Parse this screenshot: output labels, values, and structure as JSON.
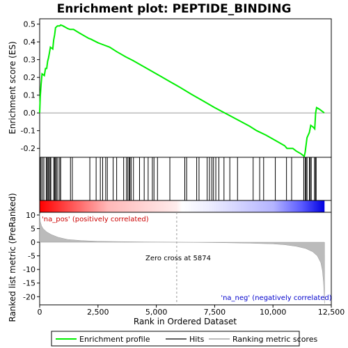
{
  "chart_data": {
    "type": "line",
    "title": "Enrichment plot: PEPTIDE_BINDING",
    "top_panel": {
      "ylabel": "Enrichment score (ES)",
      "ylim": [
        -0.25,
        0.53
      ],
      "yticks": [
        -0.2,
        -0.1,
        0.0,
        0.1,
        0.2,
        0.3,
        0.4,
        0.5
      ],
      "ytick_labels": [
        "-0.2",
        "-0.1",
        "0.0",
        "0.1",
        "0.2",
        "0.3",
        "0.4",
        "0.5"
      ],
      "series_color": "#00ee00",
      "es_curve": [
        [
          0,
          0.0
        ],
        [
          25,
          0.09
        ],
        [
          60,
          0.16
        ],
        [
          100,
          0.22
        ],
        [
          200,
          0.21
        ],
        [
          250,
          0.25
        ],
        [
          300,
          0.25
        ],
        [
          340,
          0.29
        ],
        [
          380,
          0.31
        ],
        [
          420,
          0.34
        ],
        [
          460,
          0.37
        ],
        [
          560,
          0.36
        ],
        [
          600,
          0.41
        ],
        [
          640,
          0.44
        ],
        [
          680,
          0.48
        ],
        [
          760,
          0.49
        ],
        [
          860,
          0.49
        ],
        [
          900,
          0.495
        ],
        [
          1000,
          0.49
        ],
        [
          1200,
          0.475
        ],
        [
          1300,
          0.47
        ],
        [
          1450,
          0.47
        ],
        [
          1700,
          0.45
        ],
        [
          2100,
          0.42
        ],
        [
          2200,
          0.415
        ],
        [
          2500,
          0.395
        ],
        [
          2700,
          0.385
        ],
        [
          3000,
          0.37
        ],
        [
          3300,
          0.345
        ],
        [
          3700,
          0.315
        ],
        [
          4000,
          0.295
        ],
        [
          4400,
          0.265
        ],
        [
          4800,
          0.235
        ],
        [
          5200,
          0.205
        ],
        [
          5600,
          0.175
        ],
        [
          6000,
          0.145
        ],
        [
          6500,
          0.105
        ],
        [
          7000,
          0.068
        ],
        [
          7500,
          0.03
        ],
        [
          8000,
          -0.005
        ],
        [
          8500,
          -0.04
        ],
        [
          9000,
          -0.075
        ],
        [
          9300,
          -0.1
        ],
        [
          9700,
          -0.125
        ],
        [
          10100,
          -0.155
        ],
        [
          10500,
          -0.185
        ],
        [
          10600,
          -0.2
        ],
        [
          10850,
          -0.2
        ],
        [
          11000,
          -0.215
        ],
        [
          11200,
          -0.23
        ],
        [
          11340,
          -0.245
        ],
        [
          11380,
          -0.22
        ],
        [
          11420,
          -0.18
        ],
        [
          11460,
          -0.14
        ],
        [
          11560,
          -0.11
        ],
        [
          11620,
          -0.07
        ],
        [
          11720,
          -0.08
        ],
        [
          11790,
          -0.09
        ],
        [
          11830,
          0.0
        ],
        [
          11870,
          0.03
        ],
        [
          12000,
          0.02
        ],
        [
          12200,
          0.0
        ]
      ]
    },
    "hits": [
      20,
      60,
      120,
      180,
      280,
      320,
      360,
      400,
      450,
      480,
      600,
      640,
      680,
      720,
      780,
      860,
      900,
      1320,
      1400,
      2150,
      2420,
      2600,
      2700,
      2830,
      2900,
      3150,
      3300,
      3600,
      3720,
      3780,
      3840,
      3870,
      3920,
      4020,
      4280,
      4480,
      4650,
      4830,
      4900,
      5050,
      5580,
      6220,
      6300,
      6730,
      6830,
      7180,
      7280,
      7380,
      7450,
      7550,
      7680,
      7900,
      8150,
      8480,
      9150,
      9430,
      9600,
      10100,
      10580,
      10800,
      11320,
      11380,
      11420,
      11460,
      11560,
      11600,
      11640,
      11780,
      11820,
      11850
    ],
    "middle_panel": {
      "label_pos": "'na_pos' (positively correlated)",
      "label_neg": "'na_neg' (negatively correlated)"
    },
    "bottom_panel": {
      "ylabel": "Ranked list metric (PreRanked)",
      "ylim": [
        -23,
        11
      ],
      "yticks": [
        -20,
        -15,
        -10,
        -5,
        0,
        5,
        10
      ],
      "ytick_labels": [
        "-20",
        "-15",
        "-10",
        "-5",
        "0",
        "5",
        "10"
      ],
      "zero_cross": 5874,
      "zero_cross_label": "Zero cross at 5874",
      "metric_curve": [
        [
          0,
          10.5
        ],
        [
          30,
          7.5
        ],
        [
          80,
          6.0
        ],
        [
          150,
          5.0
        ],
        [
          300,
          3.8
        ],
        [
          500,
          2.8
        ],
        [
          800,
          1.8
        ],
        [
          1200,
          1.0
        ],
        [
          1800,
          0.6
        ],
        [
          2500,
          0.35
        ],
        [
          3500,
          0.2
        ],
        [
          4500,
          0.1
        ],
        [
          5874,
          0.0
        ],
        [
          7000,
          -0.1
        ],
        [
          8000,
          -0.2
        ],
        [
          9000,
          -0.35
        ],
        [
          10000,
          -0.6
        ],
        [
          10500,
          -0.9
        ],
        [
          11000,
          -1.5
        ],
        [
          11400,
          -2.3
        ],
        [
          11700,
          -3.5
        ],
        [
          11900,
          -5.0
        ],
        [
          12050,
          -7.5
        ],
        [
          12120,
          -10.5
        ],
        [
          12170,
          -15.0
        ],
        [
          12210,
          -22.5
        ]
      ]
    },
    "xlabel": "Rank in Ordered Dataset",
    "xlim": [
      0,
      12500
    ],
    "xticks": [
      0,
      2500,
      5000,
      7500,
      10000,
      12500
    ],
    "xtick_labels": [
      "0",
      "2,500",
      "5,000",
      "7,500",
      "10,000",
      "12,500"
    ],
    "n_ranked": 12210,
    "legend": [
      {
        "label": "Enrichment profile",
        "color": "#00ee00"
      },
      {
        "label": "Hits",
        "color": "#000000"
      },
      {
        "label": "Ranking metric scores",
        "color": "#bbbbbb"
      }
    ]
  }
}
